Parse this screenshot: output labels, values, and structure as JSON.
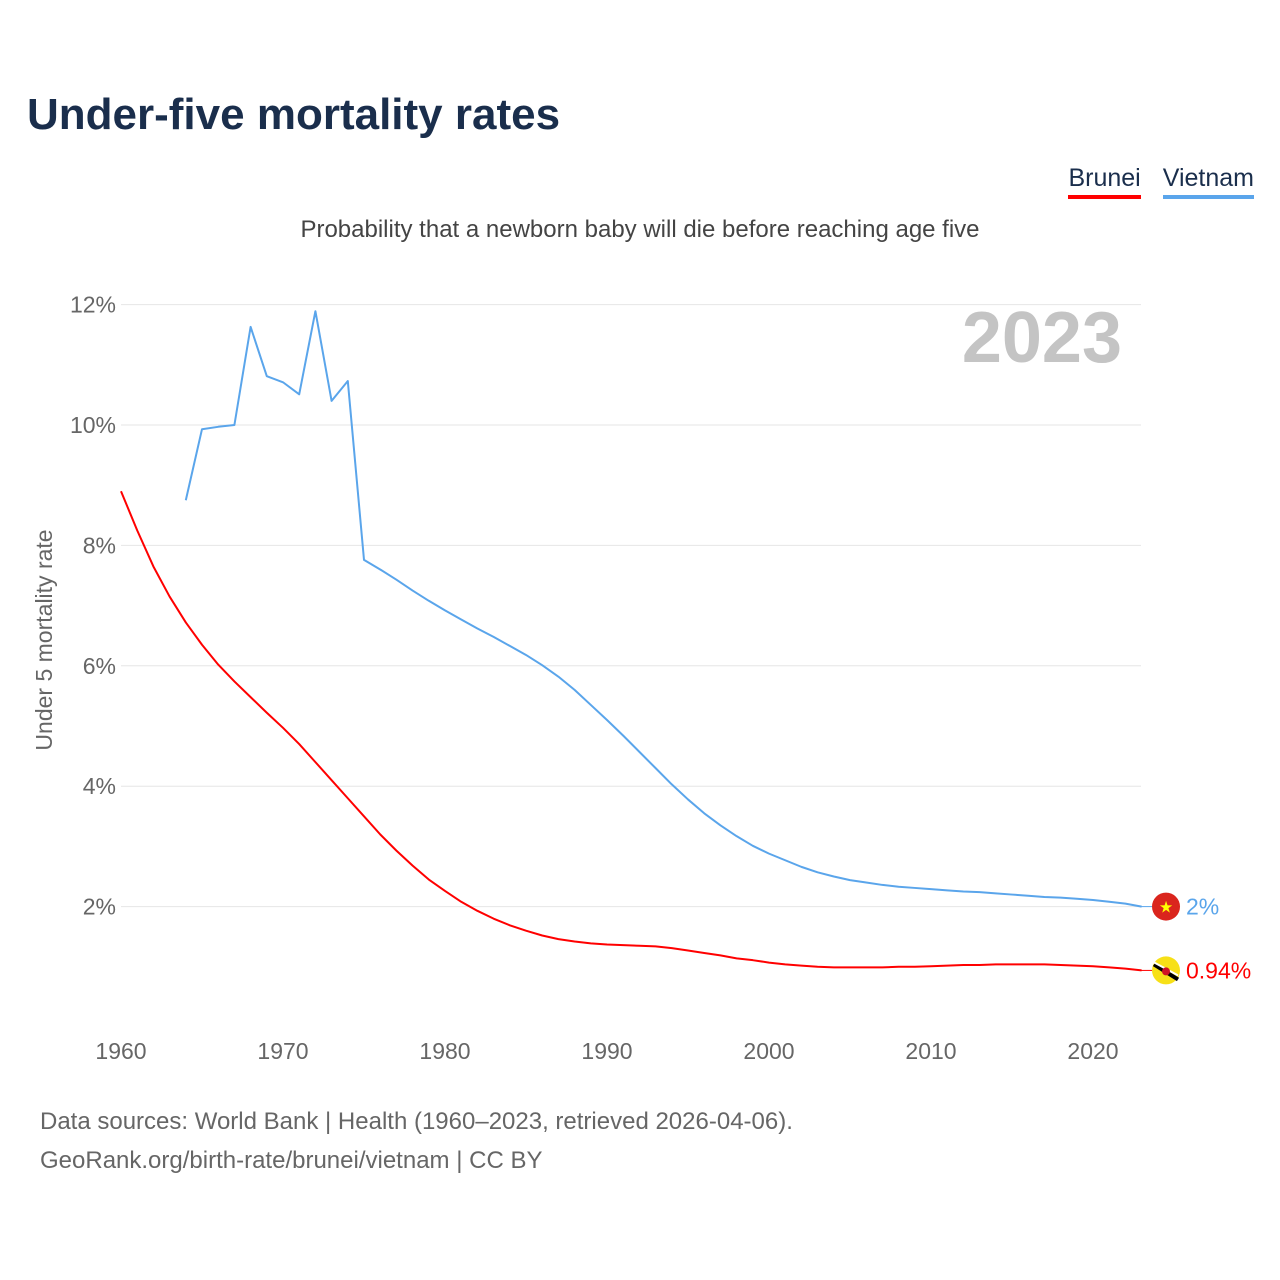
{
  "title": "Under-five mortality rates",
  "subtitle": "Probability that a newborn baby will die before reaching age five",
  "source_line1": "Data sources: World Bank | Health (1960–2023, retrieved 2026-04-06).",
  "source_line2": "GeoRank.org/birth-rate/brunei/vietnam | CC BY",
  "chart_data": {
    "type": "line",
    "title": "Under-five mortality rates",
    "ylabel": "Under 5 mortality rate",
    "xlabel": "",
    "year_label": "2023",
    "xlim": [
      1960,
      2023
    ],
    "ylim": [
      0,
      12
    ],
    "x_ticks": [
      1960,
      1970,
      1980,
      1990,
      2000,
      2010,
      2020
    ],
    "y_ticks": [
      2,
      4,
      6,
      8,
      10,
      12
    ],
    "y_tick_labels": [
      "2%",
      "4%",
      "6%",
      "8%",
      "10%",
      "12%"
    ],
    "grid": true,
    "legend_placement": "top-right",
    "series": [
      {
        "name": "Brunei",
        "color": "#ff0000",
        "end_label": "0.94%",
        "flag": "brunei-flag-icon",
        "start_year": 1960,
        "values": [
          8.9,
          8.25,
          7.65,
          7.15,
          6.72,
          6.35,
          6.02,
          5.74,
          5.48,
          5.22,
          4.97,
          4.7,
          4.4,
          4.1,
          3.8,
          3.5,
          3.2,
          2.93,
          2.68,
          2.45,
          2.26,
          2.08,
          1.93,
          1.8,
          1.69,
          1.6,
          1.52,
          1.46,
          1.42,
          1.39,
          1.37,
          1.36,
          1.35,
          1.34,
          1.31,
          1.27,
          1.23,
          1.19,
          1.14,
          1.11,
          1.07,
          1.04,
          1.02,
          1.0,
          0.99,
          0.99,
          0.99,
          0.99,
          1.0,
          1.0,
          1.01,
          1.02,
          1.03,
          1.03,
          1.04,
          1.04,
          1.04,
          1.04,
          1.03,
          1.02,
          1.01,
          0.99,
          0.97,
          0.94
        ]
      },
      {
        "name": "Vietnam",
        "color": "#5aa5eb",
        "end_label": "2%",
        "flag": "vietnam-flag-icon",
        "start_year": 1964,
        "values": [
          8.75,
          9.93,
          9.97,
          10.0,
          11.63,
          10.81,
          10.71,
          10.51,
          11.89,
          10.4,
          10.73,
          7.76,
          7.6,
          7.43,
          7.25,
          7.08,
          6.92,
          6.77,
          6.62,
          6.48,
          6.33,
          6.18,
          6.01,
          5.82,
          5.6,
          5.35,
          5.1,
          4.84,
          4.57,
          4.3,
          4.03,
          3.78,
          3.55,
          3.35,
          3.17,
          3.01,
          2.88,
          2.77,
          2.66,
          2.57,
          2.5,
          2.44,
          2.4,
          2.36,
          2.33,
          2.31,
          2.29,
          2.27,
          2.25,
          2.24,
          2.22,
          2.2,
          2.18,
          2.16,
          2.15,
          2.13,
          2.11,
          2.08,
          2.05,
          2.0
        ]
      }
    ]
  }
}
